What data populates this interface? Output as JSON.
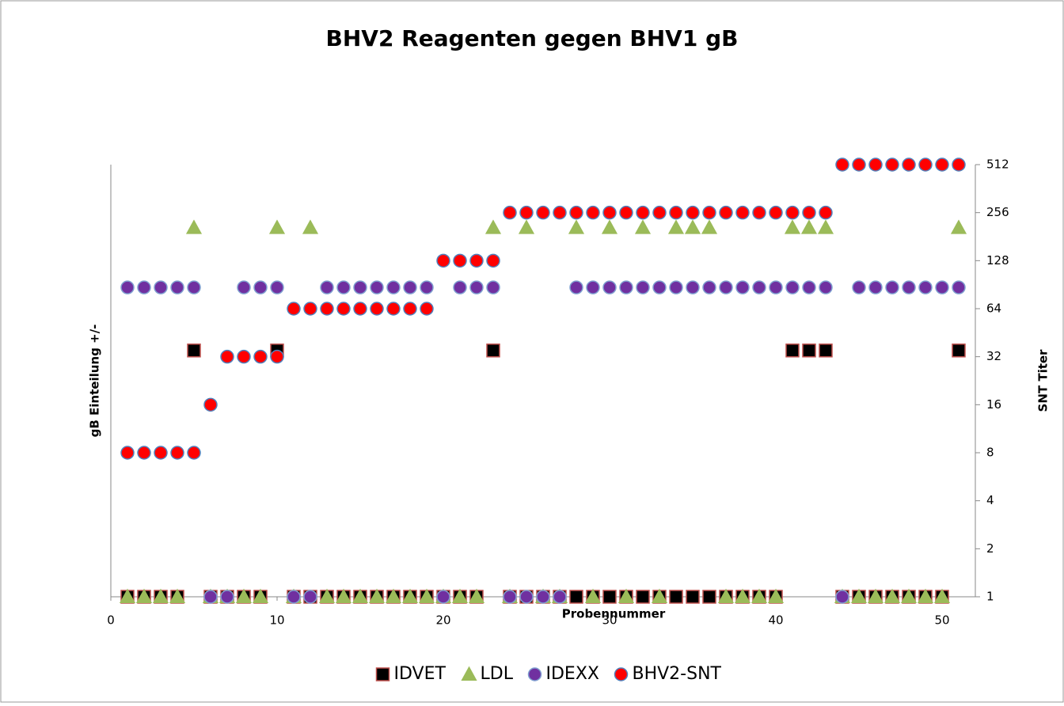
{
  "chart_data": {
    "type": "scatter",
    "title": "BHV2 Reagenten gegen BHV1 gB",
    "xlabel": "Probennummer",
    "ylabel": "gB Einteilung +/-",
    "y2label": "SNT Titer",
    "x": [
      1,
      2,
      3,
      4,
      5,
      6,
      7,
      8,
      9,
      10,
      11,
      12,
      13,
      14,
      15,
      16,
      17,
      18,
      19,
      20,
      21,
      22,
      23,
      24,
      25,
      26,
      27,
      28,
      29,
      30,
      31,
      32,
      33,
      34,
      35,
      36,
      37,
      38,
      39,
      40,
      41,
      42,
      43,
      44,
      45,
      46,
      47,
      48,
      49,
      50,
      51
    ],
    "xlim": [
      0,
      52
    ],
    "xticks": [
      0,
      10,
      20,
      30,
      40,
      50
    ],
    "y2lim": [
      1,
      512
    ],
    "y2ticks": [
      1,
      2,
      4,
      8,
      16,
      32,
      64,
      128,
      256,
      512
    ],
    "y2log": true,
    "series": [
      {
        "name": "IDVET",
        "color": "#000000",
        "edge": "#c0504d",
        "marker": "square",
        "axis": "y2",
        "values": [
          1,
          1,
          1,
          1,
          35,
          1,
          1,
          1,
          1,
          35,
          1,
          1,
          1,
          1,
          1,
          1,
          1,
          1,
          1,
          1,
          1,
          1,
          35,
          1,
          1,
          1,
          1,
          1,
          1,
          1,
          1,
          1,
          1,
          1,
          1,
          1,
          1,
          1,
          1,
          1,
          35,
          35,
          35,
          1,
          1,
          1,
          1,
          1,
          1,
          1,
          35
        ]
      },
      {
        "name": "LDL",
        "color": "#9bbb59",
        "edge": "#9bbb59",
        "marker": "triangle",
        "axis": "y2",
        "values": [
          1,
          1,
          1,
          1,
          206,
          1,
          1,
          1,
          1,
          206,
          1,
          206,
          1,
          1,
          1,
          1,
          1,
          1,
          1,
          1,
          1,
          1,
          206,
          1,
          206,
          1,
          1,
          206,
          1,
          206,
          1,
          206,
          1,
          206,
          206,
          206,
          1,
          1,
          1,
          1,
          206,
          206,
          206,
          1,
          1,
          1,
          1,
          1,
          1,
          1,
          206
        ]
      },
      {
        "name": "IDEXX",
        "color": "#7030a0",
        "edge": "#7f9fd0",
        "marker": "circle",
        "axis": "y2",
        "values": [
          87,
          87,
          87,
          87,
          87,
          1,
          1,
          87,
          87,
          87,
          1,
          1,
          87,
          87,
          87,
          87,
          87,
          87,
          87,
          1,
          87,
          87,
          87,
          1,
          1,
          1,
          1,
          87,
          87,
          87,
          87,
          87,
          87,
          87,
          87,
          87,
          87,
          87,
          87,
          87,
          87,
          87,
          87,
          1,
          87,
          87,
          87,
          87,
          87,
          87,
          87
        ]
      },
      {
        "name": "BHV2-SNT",
        "color": "#ff0000",
        "edge": "#4f81bd",
        "marker": "circle",
        "axis": "y2",
        "values": [
          8,
          8,
          8,
          8,
          8,
          16,
          32,
          32,
          32,
          32,
          64,
          64,
          64,
          64,
          64,
          64,
          64,
          64,
          64,
          128,
          128,
          128,
          128,
          256,
          256,
          256,
          256,
          256,
          256,
          256,
          256,
          256,
          256,
          256,
          256,
          256,
          256,
          256,
          256,
          256,
          256,
          256,
          256,
          512,
          512,
          512,
          512,
          512,
          512,
          512,
          512
        ]
      }
    ]
  }
}
